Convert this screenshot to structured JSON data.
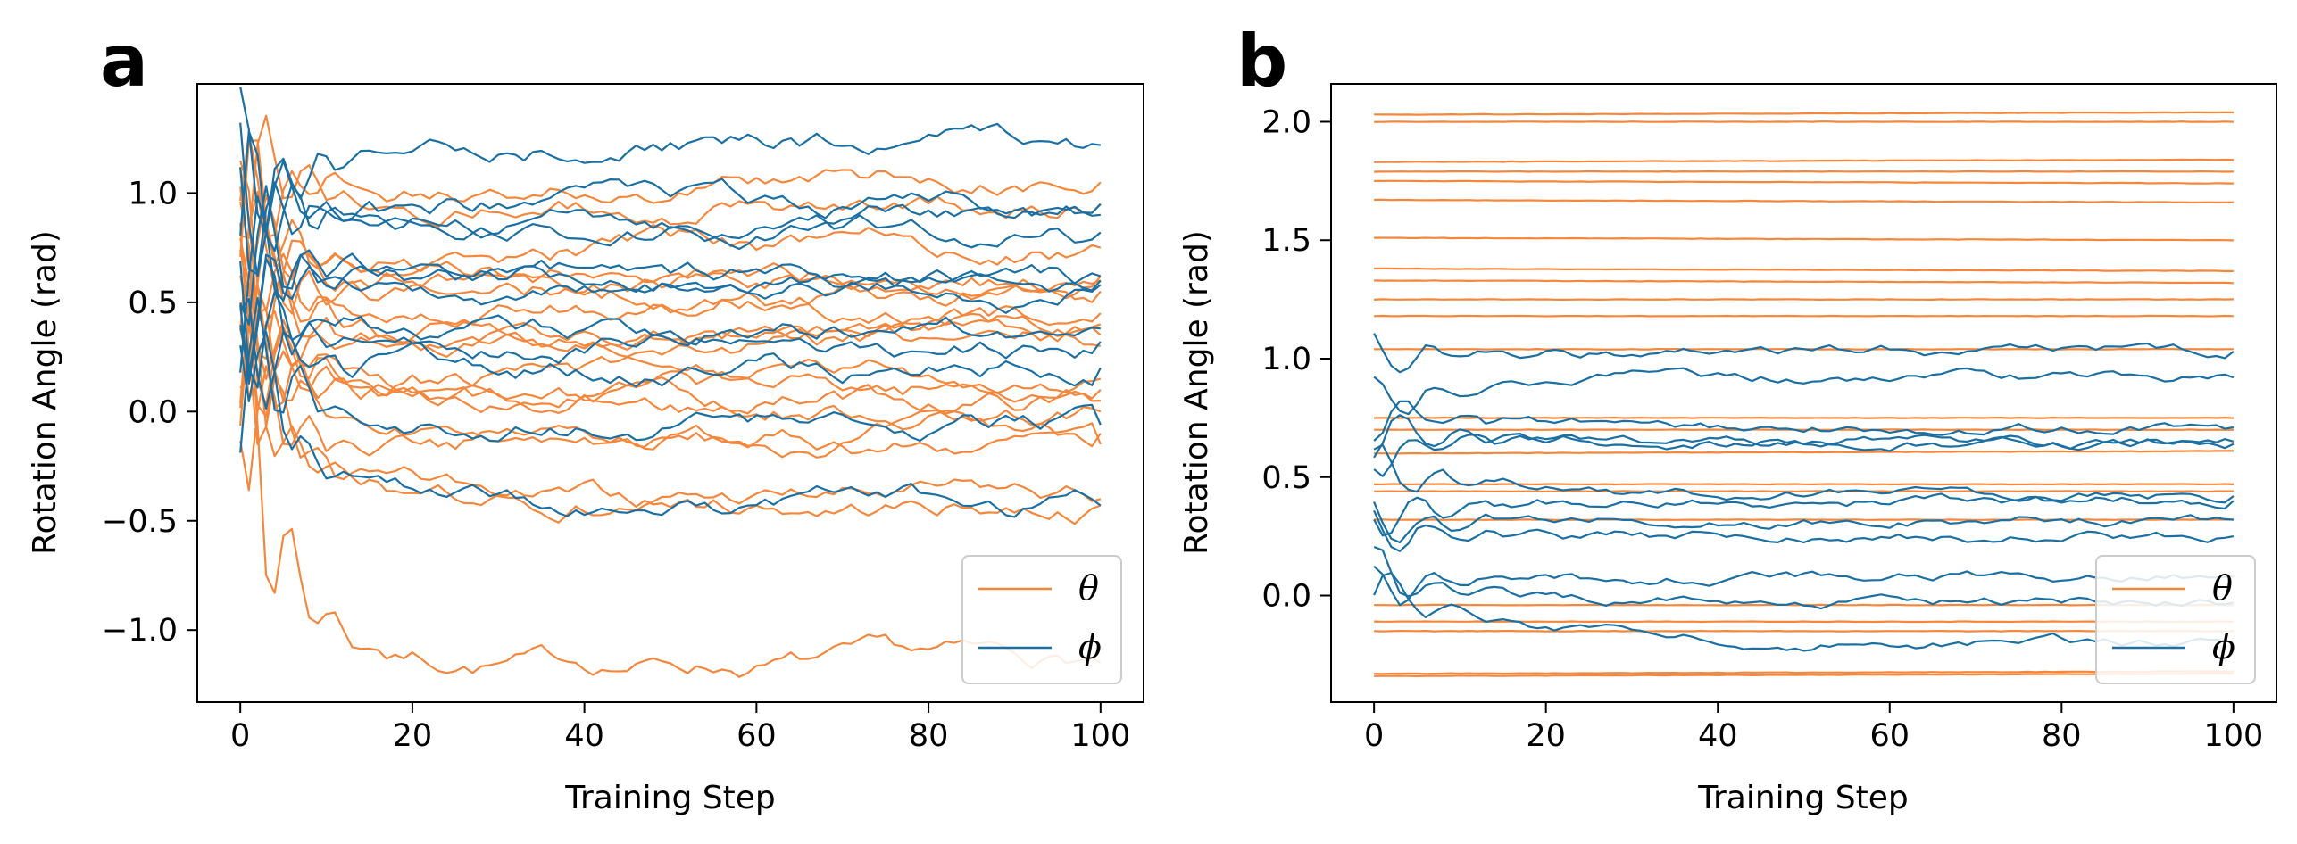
{
  "colors": {
    "theta": "#f5873c",
    "phi": "#1a6fa3",
    "axis": "#000000",
    "legend_border": "#cccccc"
  },
  "chart_data": [
    {
      "panel": "a",
      "type": "line",
      "xlabel": "Training Step",
      "ylabel": "Rotation Angle (rad)",
      "xlim": [
        -5,
        105
      ],
      "ylim": [
        -1.33,
        1.5
      ],
      "xticks": [
        0,
        20,
        40,
        60,
        80,
        100
      ],
      "xtick_labels": [
        "0",
        "20",
        "40",
        "60",
        "80",
        "100"
      ],
      "yticks": [
        -1.0,
        -0.5,
        0.0,
        0.5,
        1.0
      ],
      "ytick_labels": [
        "−1.0",
        "−0.5",
        "0.0",
        "0.5",
        "1.0"
      ],
      "legend": {
        "location": "lower right",
        "entries": [
          "θ",
          "ϕ"
        ]
      },
      "n_steps": 100,
      "mode": "converging",
      "seed": 7,
      "series": [
        {
          "group": "theta",
          "name": "θ",
          "start": 0.0,
          "final": -1.15,
          "amp": 1.0,
          "noise": 0.03
        },
        {
          "group": "theta",
          "name": "θ",
          "start": 0.3,
          "final": -0.4,
          "amp": 0.6,
          "noise": 0.03
        },
        {
          "group": "theta",
          "name": "θ",
          "start": 0.2,
          "final": -0.43,
          "amp": 0.5,
          "noise": 0.03
        },
        {
          "group": "theta",
          "name": "θ",
          "start": 0.1,
          "final": -0.15,
          "amp": 0.6,
          "noise": 0.03
        },
        {
          "group": "theta",
          "name": "θ",
          "start": 0.5,
          "final": -0.1,
          "amp": 0.5,
          "noise": 0.03
        },
        {
          "group": "theta",
          "name": "θ",
          "start": 0.2,
          "final": 0.0,
          "amp": 0.5,
          "noise": 0.03
        },
        {
          "group": "theta",
          "name": "θ",
          "start": 0.4,
          "final": 0.05,
          "amp": 0.6,
          "noise": 0.03
        },
        {
          "group": "theta",
          "name": "θ",
          "start": 0.6,
          "final": 0.1,
          "amp": 0.5,
          "noise": 0.03
        },
        {
          "group": "theta",
          "name": "θ",
          "start": 0.3,
          "final": 0.15,
          "amp": 0.6,
          "noise": 0.03
        },
        {
          "group": "theta",
          "name": "θ",
          "start": 0.7,
          "final": 0.3,
          "amp": 0.5,
          "noise": 0.03
        },
        {
          "group": "theta",
          "name": "θ",
          "start": 0.5,
          "final": 0.35,
          "amp": 0.6,
          "noise": 0.03
        },
        {
          "group": "theta",
          "name": "θ",
          "start": 0.4,
          "final": 0.4,
          "amp": 0.5,
          "noise": 0.03
        },
        {
          "group": "theta",
          "name": "θ",
          "start": 0.8,
          "final": 0.45,
          "amp": 0.5,
          "noise": 0.03
        },
        {
          "group": "theta",
          "name": "θ",
          "start": 0.6,
          "final": 0.55,
          "amp": 0.6,
          "noise": 0.03
        },
        {
          "group": "theta",
          "name": "θ",
          "start": 0.9,
          "final": 0.6,
          "amp": 0.5,
          "noise": 0.03
        },
        {
          "group": "theta",
          "name": "θ",
          "start": 1.0,
          "final": 0.62,
          "amp": 0.6,
          "noise": 0.03
        },
        {
          "group": "theta",
          "name": "θ",
          "start": 0.7,
          "final": 0.75,
          "amp": 0.5,
          "noise": 0.03
        },
        {
          "group": "theta",
          "name": "θ",
          "start": 1.2,
          "final": 0.95,
          "amp": 0.6,
          "noise": 0.03
        },
        {
          "group": "theta",
          "name": "θ",
          "start": 0.9,
          "final": 1.05,
          "amp": 0.5,
          "noise": 0.03
        },
        {
          "group": "phi",
          "name": "ϕ",
          "start": 0.5,
          "final": -0.43,
          "amp": 0.5,
          "noise": 0.03
        },
        {
          "group": "phi",
          "name": "ϕ",
          "start": 0.3,
          "final": -0.06,
          "amp": 0.6,
          "noise": 0.03
        },
        {
          "group": "phi",
          "name": "ϕ",
          "start": 0.2,
          "final": 0.2,
          "amp": 0.5,
          "noise": 0.03
        },
        {
          "group": "phi",
          "name": "ϕ",
          "start": 0.6,
          "final": 0.32,
          "amp": 0.6,
          "noise": 0.03
        },
        {
          "group": "phi",
          "name": "ϕ",
          "start": 0.4,
          "final": 0.38,
          "amp": 0.5,
          "noise": 0.03
        },
        {
          "group": "phi",
          "name": "ϕ",
          "start": 0.7,
          "final": 0.58,
          "amp": 0.6,
          "noise": 0.03
        },
        {
          "group": "phi",
          "name": "ϕ",
          "start": 0.5,
          "final": 0.6,
          "amp": 0.5,
          "noise": 0.03
        },
        {
          "group": "phi",
          "name": "ϕ",
          "start": 0.8,
          "final": 0.62,
          "amp": 0.6,
          "noise": 0.03
        },
        {
          "group": "phi",
          "name": "ϕ",
          "start": 0.9,
          "final": 0.82,
          "amp": 0.5,
          "noise": 0.03
        },
        {
          "group": "phi",
          "name": "ϕ",
          "start": 1.0,
          "final": 0.9,
          "amp": 0.6,
          "noise": 0.03
        },
        {
          "group": "phi",
          "name": "ϕ",
          "start": 1.1,
          "final": 0.95,
          "amp": 0.5,
          "noise": 0.03
        },
        {
          "group": "phi",
          "name": "ϕ",
          "start": 0.8,
          "final": 1.22,
          "amp": 0.6,
          "noise": 0.03
        }
      ]
    },
    {
      "panel": "b",
      "type": "line",
      "xlabel": "Training Step",
      "ylabel": "Rotation Angle (rad)",
      "xlim": [
        -5,
        105
      ],
      "ylim": [
        -0.45,
        2.16
      ],
      "xticks": [
        0,
        20,
        40,
        60,
        80,
        100
      ],
      "xtick_labels": [
        "0",
        "20",
        "40",
        "60",
        "80",
        "100"
      ],
      "yticks": [
        0.0,
        0.5,
        1.0,
        1.5,
        2.0
      ],
      "ytick_labels": [
        "0.0",
        "0.5",
        "1.0",
        "1.5",
        "2.0"
      ],
      "legend": {
        "location": "lower right",
        "entries": [
          "θ",
          "ϕ"
        ]
      },
      "n_steps": 100,
      "mode": "flat_theta",
      "seed": 11,
      "series": [
        {
          "group": "theta",
          "name": "θ",
          "start": -0.34,
          "final": -0.33,
          "amp": 0,
          "noise": 0.002
        },
        {
          "group": "theta",
          "name": "θ",
          "start": -0.33,
          "final": -0.32,
          "amp": 0,
          "noise": 0.002
        },
        {
          "group": "theta",
          "name": "θ",
          "start": -0.15,
          "final": -0.15,
          "amp": 0,
          "noise": 0.002
        },
        {
          "group": "theta",
          "name": "θ",
          "start": -0.11,
          "final": -0.11,
          "amp": 0,
          "noise": 0.002
        },
        {
          "group": "theta",
          "name": "θ",
          "start": -0.04,
          "final": -0.04,
          "amp": 0,
          "noise": 0.002
        },
        {
          "group": "theta",
          "name": "θ",
          "start": 0.32,
          "final": 0.32,
          "amp": 0,
          "noise": 0.002
        },
        {
          "group": "theta",
          "name": "θ",
          "start": 0.44,
          "final": 0.44,
          "amp": 0,
          "noise": 0.002
        },
        {
          "group": "theta",
          "name": "θ",
          "start": 0.47,
          "final": 0.47,
          "amp": 0,
          "noise": 0.002
        },
        {
          "group": "theta",
          "name": "θ",
          "start": 0.6,
          "final": 0.61,
          "amp": 0,
          "noise": 0.002
        },
        {
          "group": "theta",
          "name": "θ",
          "start": 0.7,
          "final": 0.7,
          "amp": 0,
          "noise": 0.002
        },
        {
          "group": "theta",
          "name": "θ",
          "start": 0.75,
          "final": 0.75,
          "amp": 0,
          "noise": 0.002
        },
        {
          "group": "theta",
          "name": "θ",
          "start": 1.04,
          "final": 1.04,
          "amp": 0,
          "noise": 0.002
        },
        {
          "group": "theta",
          "name": "θ",
          "start": 1.18,
          "final": 1.18,
          "amp": 0,
          "noise": 0.002
        },
        {
          "group": "theta",
          "name": "θ",
          "start": 1.25,
          "final": 1.25,
          "amp": 0,
          "noise": 0.002
        },
        {
          "group": "theta",
          "name": "θ",
          "start": 1.33,
          "final": 1.32,
          "amp": 0,
          "noise": 0.002
        },
        {
          "group": "theta",
          "name": "θ",
          "start": 1.38,
          "final": 1.37,
          "amp": 0,
          "noise": 0.002
        },
        {
          "group": "theta",
          "name": "θ",
          "start": 1.51,
          "final": 1.5,
          "amp": 0,
          "noise": 0.002
        },
        {
          "group": "theta",
          "name": "θ",
          "start": 1.67,
          "final": 1.66,
          "amp": 0,
          "noise": 0.002
        },
        {
          "group": "theta",
          "name": "θ",
          "start": 1.75,
          "final": 1.74,
          "amp": 0,
          "noise": 0.002
        },
        {
          "group": "theta",
          "name": "θ",
          "start": 1.79,
          "final": 1.79,
          "amp": 0,
          "noise": 0.002
        },
        {
          "group": "theta",
          "name": "θ",
          "start": 1.83,
          "final": 1.84,
          "amp": 0,
          "noise": 0.002
        },
        {
          "group": "theta",
          "name": "θ",
          "start": 2.0,
          "final": 2.0,
          "amp": 0,
          "noise": 0.002
        },
        {
          "group": "theta",
          "name": "θ",
          "start": 2.03,
          "final": 2.04,
          "amp": 0,
          "noise": 0.002
        },
        {
          "group": "phi",
          "name": "ϕ",
          "start": 0.05,
          "final": -0.2,
          "amp": 0.2,
          "noise": 0.015
        },
        {
          "group": "phi",
          "name": "ϕ",
          "start": 0.1,
          "final": -0.03,
          "amp": 0.2,
          "noise": 0.015
        },
        {
          "group": "phi",
          "name": "ϕ",
          "start": 0.0,
          "final": 0.08,
          "amp": 0.2,
          "noise": 0.015
        },
        {
          "group": "phi",
          "name": "ϕ",
          "start": 0.25,
          "final": 0.25,
          "amp": 0.2,
          "noise": 0.015
        },
        {
          "group": "phi",
          "name": "ϕ",
          "start": 0.3,
          "final": 0.32,
          "amp": 0.2,
          "noise": 0.015
        },
        {
          "group": "phi",
          "name": "ϕ",
          "start": 0.35,
          "final": 0.4,
          "amp": 0.2,
          "noise": 0.015
        },
        {
          "group": "phi",
          "name": "ϕ",
          "start": 0.55,
          "final": 0.42,
          "amp": 0.2,
          "noise": 0.015
        },
        {
          "group": "phi",
          "name": "ϕ",
          "start": 0.62,
          "final": 0.64,
          "amp": 0.2,
          "noise": 0.015
        },
        {
          "group": "phi",
          "name": "ϕ",
          "start": 0.7,
          "final": 0.65,
          "amp": 0.2,
          "noise": 0.015
        },
        {
          "group": "phi",
          "name": "ϕ",
          "start": 0.78,
          "final": 0.71,
          "amp": 0.2,
          "noise": 0.015
        },
        {
          "group": "phi",
          "name": "ϕ",
          "start": 0.8,
          "final": 0.92,
          "amp": 0.2,
          "noise": 0.015
        },
        {
          "group": "phi",
          "name": "ϕ",
          "start": 0.98,
          "final": 1.03,
          "amp": 0.2,
          "noise": 0.015
        }
      ]
    }
  ]
}
